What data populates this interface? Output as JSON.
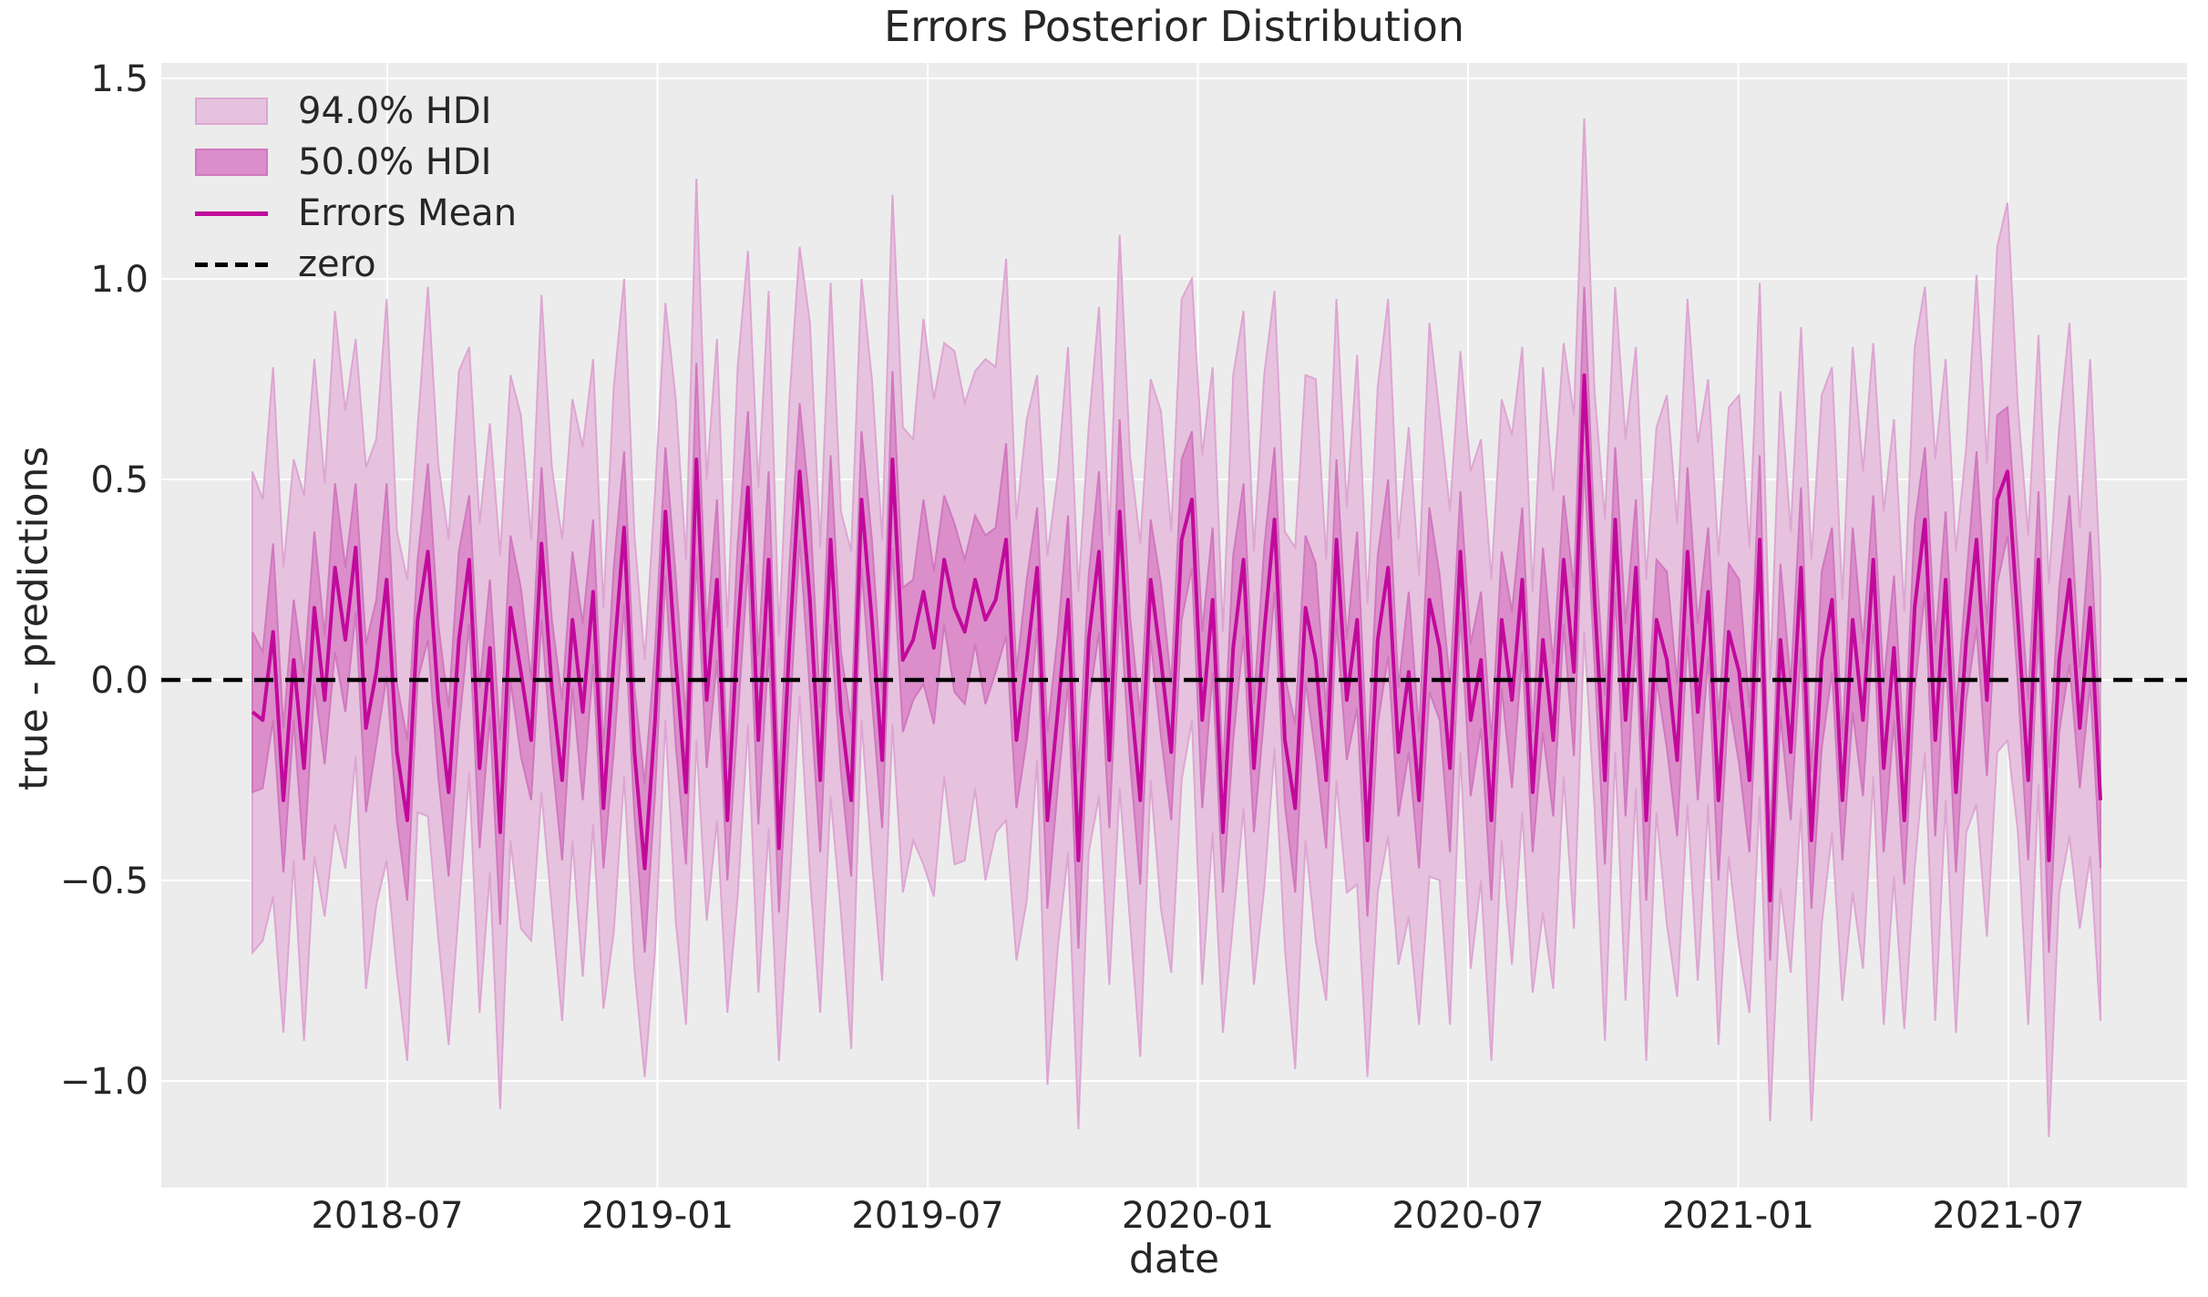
{
  "title": "Errors Posterior Distribution",
  "legend": {
    "hdi94": "94.0% HDI",
    "hdi50": "50.0% HDI",
    "mean": "Errors Mean",
    "zero": "zero"
  },
  "colors": {
    "figure_bg": "#ffffff",
    "axes_bg": "#ececec",
    "grid": "#ffffff",
    "hdi94_fill": "#e6c2df",
    "hdi94_edge": "#dda6d2",
    "hdi50_fill": "#db8eca",
    "hdi50_edge": "#d078be",
    "mean_line": "#c10a9c",
    "zero_line": "#000000",
    "text": "#262626"
  },
  "chart_data": {
    "type": "line",
    "title": "Errors Posterior Distribution",
    "xlabel": "date",
    "ylabel": "true - predictions",
    "x_tick_labels": [
      "2018-07",
      "2019-01",
      "2019-07",
      "2020-01",
      "2020-07",
      "2021-01",
      "2021-07"
    ],
    "y_ticks": [
      {
        "value": 1.5,
        "label": "1.5"
      },
      {
        "value": 1.0,
        "label": "1.0"
      },
      {
        "value": 0.5,
        "label": "0.5"
      },
      {
        "value": 0.0,
        "label": "0.0"
      },
      {
        "value": -0.5,
        "label": "−0.5"
      },
      {
        "value": -1.0,
        "label": "−1.0"
      }
    ],
    "ylim": [
      -1.27,
      1.54
    ],
    "x_start": "2018-04-01",
    "x_end": "2021-09-05",
    "x_freq": "weekly",
    "n_points": 180,
    "zero_reference": 0.0,
    "grid": true,
    "legend_position": "upper left",
    "series": [
      {
        "name": "Errors Mean",
        "type": "line",
        "values": [
          -0.08,
          -0.1,
          0.12,
          -0.3,
          0.05,
          -0.22,
          0.18,
          -0.05,
          0.28,
          0.1,
          0.33,
          -0.12,
          0.02,
          0.25,
          -0.18,
          -0.35,
          0.15,
          0.32,
          -0.05,
          -0.28,
          0.1,
          0.3,
          -0.22,
          0.08,
          -0.38,
          0.18,
          0.02,
          -0.15,
          0.34,
          -0.02,
          -0.25,
          0.15,
          -0.08,
          0.22,
          -0.32,
          0.05,
          0.38,
          -0.18,
          -0.47,
          -0.1,
          0.42,
          0.05,
          -0.28,
          0.55,
          -0.05,
          0.25,
          -0.35,
          0.12,
          0.48,
          -0.15,
          0.3,
          -0.42,
          0.08,
          0.52,
          0.2,
          -0.25,
          0.35,
          -0.08,
          -0.3,
          0.45,
          0.15,
          -0.2,
          0.55,
          0.05,
          0.1,
          0.22,
          0.08,
          0.3,
          0.18,
          0.12,
          0.25,
          0.15,
          0.2,
          0.35,
          -0.15,
          0.05,
          0.28,
          -0.35,
          -0.08,
          0.2,
          -0.45,
          0.1,
          0.32,
          -0.2,
          0.42,
          -0.02,
          -0.3,
          0.25,
          0.05,
          -0.18,
          0.35,
          0.45,
          -0.1,
          0.2,
          -0.38,
          0.08,
          0.3,
          -0.22,
          0.12,
          0.4,
          -0.15,
          -0.32,
          0.18,
          0.05,
          -0.25,
          0.35,
          -0.05,
          0.15,
          -0.4,
          0.1,
          0.28,
          -0.18,
          0.02,
          -0.3,
          0.2,
          0.08,
          -0.22,
          0.32,
          -0.1,
          0.05,
          -0.35,
          0.15,
          -0.05,
          0.25,
          -0.28,
          0.1,
          -0.15,
          0.3,
          0.02,
          0.76,
          0.2,
          -0.25,
          0.4,
          -0.1,
          0.28,
          -0.35,
          0.15,
          0.05,
          -0.2,
          0.32,
          -0.08,
          0.22,
          -0.3,
          0.12,
          0.02,
          -0.25,
          0.35,
          -0.55,
          0.1,
          -0.18,
          0.28,
          -0.4,
          0.05,
          0.2,
          -0.3,
          0.15,
          -0.1,
          0.3,
          -0.22,
          0.08,
          -0.35,
          0.18,
          0.4,
          -0.15,
          0.25,
          -0.28,
          0.1,
          0.35,
          -0.05,
          0.45,
          0.52,
          0.15,
          -0.25,
          0.3,
          -0.45,
          0.05,
          0.25,
          -0.12,
          0.18,
          -0.3
        ]
      },
      {
        "name": "94.0% HDI",
        "type": "band",
        "halfwidth": [
          0.6,
          0.55,
          0.66,
          0.58,
          0.5,
          0.68,
          0.62,
          0.54,
          0.64,
          0.57,
          0.52,
          0.65,
          0.58,
          0.7,
          0.55,
          0.6,
          0.48,
          0.66,
          0.59,
          0.63,
          0.67,
          0.53,
          0.61,
          0.56,
          0.69,
          0.58,
          0.64,
          0.5,
          0.62,
          0.55,
          0.6,
          0.55,
          0.66,
          0.58,
          0.5,
          0.68,
          0.62,
          0.54,
          0.52,
          0.57,
          0.52,
          0.65,
          0.58,
          0.7,
          0.55,
          0.6,
          0.48,
          0.66,
          0.59,
          0.63,
          0.67,
          0.53,
          0.61,
          0.56,
          0.69,
          0.58,
          0.64,
          0.5,
          0.62,
          0.55,
          0.6,
          0.55,
          0.66,
          0.58,
          0.5,
          0.68,
          0.62,
          0.54,
          0.64,
          0.57,
          0.52,
          0.65,
          0.58,
          0.7,
          0.55,
          0.6,
          0.48,
          0.66,
          0.59,
          0.63,
          0.67,
          0.53,
          0.61,
          0.56,
          0.69,
          0.58,
          0.64,
          0.5,
          0.62,
          0.55,
          0.6,
          0.55,
          0.66,
          0.58,
          0.5,
          0.68,
          0.62,
          0.54,
          0.64,
          0.57,
          0.52,
          0.65,
          0.58,
          0.7,
          0.55,
          0.6,
          0.48,
          0.66,
          0.59,
          0.63,
          0.67,
          0.53,
          0.61,
          0.56,
          0.69,
          0.58,
          0.64,
          0.5,
          0.62,
          0.55,
          0.6,
          0.55,
          0.66,
          0.58,
          0.5,
          0.68,
          0.62,
          0.54,
          0.64,
          0.64,
          0.52,
          0.65,
          0.58,
          0.7,
          0.55,
          0.6,
          0.48,
          0.66,
          0.59,
          0.63,
          0.67,
          0.53,
          0.61,
          0.56,
          0.69,
          0.58,
          0.64,
          0.55,
          0.62,
          0.55,
          0.6,
          0.7,
          0.66,
          0.58,
          0.5,
          0.68,
          0.62,
          0.54,
          0.64,
          0.57,
          0.52,
          0.65,
          0.58,
          0.7,
          0.55,
          0.6,
          0.48,
          0.66,
          0.59,
          0.63,
          0.67,
          0.53,
          0.61,
          0.56,
          0.69,
          0.58,
          0.64,
          0.5,
          0.62,
          0.55
        ]
      },
      {
        "name": "50.0% HDI",
        "type": "band",
        "halfwidth": [
          0.2,
          0.17,
          0.22,
          0.18,
          0.15,
          0.23,
          0.19,
          0.16,
          0.21,
          0.18,
          0.16,
          0.21,
          0.18,
          0.24,
          0.17,
          0.2,
          0.15,
          0.22,
          0.19,
          0.21,
          0.22,
          0.16,
          0.2,
          0.17,
          0.23,
          0.18,
          0.21,
          0.15,
          0.19,
          0.17,
          0.2,
          0.17,
          0.22,
          0.18,
          0.15,
          0.23,
          0.19,
          0.16,
          0.21,
          0.18,
          0.16,
          0.21,
          0.18,
          0.24,
          0.17,
          0.2,
          0.15,
          0.22,
          0.19,
          0.21,
          0.22,
          0.16,
          0.2,
          0.17,
          0.23,
          0.18,
          0.21,
          0.15,
          0.19,
          0.17,
          0.2,
          0.17,
          0.22,
          0.18,
          0.15,
          0.23,
          0.19,
          0.16,
          0.21,
          0.18,
          0.16,
          0.21,
          0.18,
          0.24,
          0.17,
          0.2,
          0.15,
          0.22,
          0.19,
          0.21,
          0.22,
          0.16,
          0.2,
          0.17,
          0.23,
          0.18,
          0.21,
          0.15,
          0.19,
          0.17,
          0.2,
          0.17,
          0.22,
          0.18,
          0.15,
          0.23,
          0.19,
          0.16,
          0.21,
          0.18,
          0.16,
          0.21,
          0.18,
          0.24,
          0.17,
          0.2,
          0.15,
          0.22,
          0.19,
          0.21,
          0.22,
          0.16,
          0.2,
          0.17,
          0.23,
          0.18,
          0.21,
          0.15,
          0.19,
          0.17,
          0.2,
          0.17,
          0.22,
          0.18,
          0.15,
          0.23,
          0.19,
          0.16,
          0.21,
          0.22,
          0.16,
          0.21,
          0.18,
          0.24,
          0.17,
          0.2,
          0.15,
          0.22,
          0.19,
          0.21,
          0.22,
          0.16,
          0.2,
          0.17,
          0.23,
          0.18,
          0.21,
          0.15,
          0.19,
          0.17,
          0.2,
          0.17,
          0.22,
          0.18,
          0.15,
          0.23,
          0.19,
          0.16,
          0.21,
          0.18,
          0.16,
          0.21,
          0.18,
          0.24,
          0.17,
          0.2,
          0.15,
          0.22,
          0.19,
          0.21,
          0.16,
          0.16,
          0.2,
          0.17,
          0.23,
          0.18,
          0.21,
          0.15,
          0.19,
          0.17
        ]
      }
    ]
  }
}
